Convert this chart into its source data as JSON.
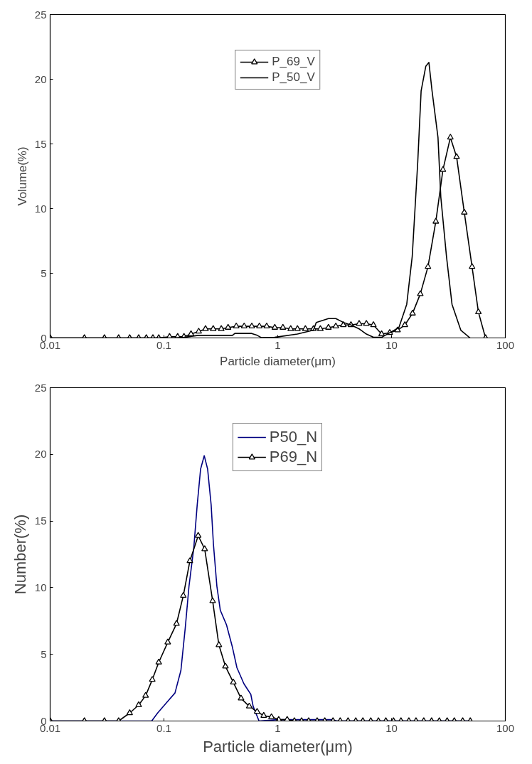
{
  "chart_data": [
    {
      "type": "line",
      "xlabel": "Particle diameter(μm)",
      "ylabel": "Volume(%)",
      "log": "x",
      "xlim": [
        0.01,
        100
      ],
      "ylim": [
        0,
        25
      ],
      "xticks": [
        0.01,
        0.1,
        1,
        10,
        100
      ],
      "yticks": [
        0,
        5,
        10,
        15,
        20,
        25
      ],
      "grid": false,
      "legend": "top",
      "series": [
        {
          "name": "P_69_V",
          "color": "#000000",
          "marker": "triangle",
          "x": [
            0.01,
            0.02,
            0.03,
            0.04,
            0.05,
            0.06,
            0.07,
            0.08,
            0.09,
            0.112,
            0.132,
            0.15,
            0.173,
            0.202,
            0.232,
            0.271,
            0.319,
            0.366,
            0.432,
            0.507,
            0.592,
            0.69,
            0.8,
            0.942,
            1.11,
            1.3,
            1.49,
            1.75,
            2.06,
            2.37,
            2.79,
            3.24,
            3.77,
            4.4,
            5.19,
            6.01,
            6.93,
            8.18,
            9.64,
            11.3,
            13.1,
            15.3,
            17.9,
            20.9,
            24.5,
            28.3,
            32.9,
            37.3,
            43.6,
            51,
            58,
            67
          ],
          "values": [
            0,
            0,
            0,
            0,
            0,
            0,
            0,
            0,
            0,
            0.1,
            0.1,
            0.1,
            0.3,
            0.5,
            0.7,
            0.7,
            0.7,
            0.8,
            0.9,
            0.9,
            0.9,
            0.9,
            0.9,
            0.8,
            0.8,
            0.7,
            0.7,
            0.7,
            0.7,
            0.7,
            0.8,
            0.9,
            1.0,
            1.0,
            1.1,
            1.1,
            1.0,
            0.3,
            0.4,
            0.6,
            1.0,
            1.9,
            3.4,
            5.5,
            9.0,
            13.0,
            15.5,
            14.0,
            9.7,
            5.5,
            2.0,
            0
          ]
        },
        {
          "name": "P_50_V",
          "color": "#000000",
          "marker": "none",
          "x": [
            0.01,
            0.12,
            0.15,
            0.2,
            0.27,
            0.4,
            0.42,
            0.59,
            0.66,
            0.72,
            0.94,
            1.49,
            2.06,
            2.18,
            2.79,
            3.24,
            3.77,
            4.4,
            5.19,
            6.01,
            6.93,
            8.18,
            9.64,
            11.6,
            13.6,
            15.2,
            17,
            18.2,
            20,
            21.3,
            22.7,
            25.6,
            27.1,
            30.4,
            34,
            40.6,
            49
          ],
          "values": [
            0,
            0,
            0.05,
            0.2,
            0.2,
            0.2,
            0.35,
            0.35,
            0.2,
            0.02,
            0.05,
            0.3,
            0.6,
            1.2,
            1.5,
            1.5,
            1.2,
            1.0,
            0.7,
            0.3,
            0.05,
            0.05,
            0.4,
            0.8,
            2.6,
            6.3,
            13.6,
            19.1,
            21.0,
            21.3,
            19.1,
            15.5,
            10.9,
            6.3,
            2.6,
            0.6,
            0
          ]
        }
      ]
    },
    {
      "type": "line",
      "xlabel": "Particle diameter(μm)",
      "ylabel": "Number(%)",
      "log": "x",
      "xlim": [
        0.01,
        100
      ],
      "ylim": [
        0,
        25
      ],
      "xticks": [
        0.01,
        0.1,
        1,
        10,
        100
      ],
      "yticks": [
        0,
        5,
        10,
        15,
        20,
        25
      ],
      "grid": false,
      "legend": "top",
      "series": [
        {
          "name": "P50_N",
          "color": "#000080",
          "marker": "none",
          "x": [
            0.01,
            0.078,
            0.088,
            0.106,
            0.125,
            0.141,
            0.154,
            0.166,
            0.183,
            0.196,
            0.21,
            0.226,
            0.242,
            0.26,
            0.272,
            0.292,
            0.313,
            0.355,
            0.398,
            0.438,
            0.504,
            0.58,
            0.608,
            0.685,
            1.0,
            3.0,
            3.3,
            50
          ],
          "values": [
            0,
            0,
            0.6,
            1.4,
            2.1,
            3.8,
            7.0,
            10.1,
            13.0,
            16.2,
            18.9,
            19.9,
            18.9,
            16.2,
            13.3,
            10.1,
            8.3,
            7.2,
            5.6,
            4.0,
            2.8,
            2.0,
            1.1,
            0,
            0.1,
            0.1,
            0,
            0
          ]
        },
        {
          "name": "P69_N",
          "color": "#000000",
          "marker": "triangle",
          "x": [
            0.01,
            0.02,
            0.03,
            0.04,
            0.05,
            0.06,
            0.069,
            0.079,
            0.09,
            0.108,
            0.129,
            0.148,
            0.169,
            0.2,
            0.228,
            0.268,
            0.304,
            0.347,
            0.407,
            0.476,
            0.562,
            0.659,
            0.753,
            0.881,
            1.02,
            1.21,
            1.4,
            1.62,
            1.87,
            2.22,
            2.59,
            3.06,
            3.54,
            4.15,
            4.85,
            5.6,
            6.57,
            7.67,
            8.91,
            10.4,
            12.1,
            14.2,
            16.4,
            19.2,
            22.5,
            26.3,
            30.8,
            35.6,
            42.2,
            49.2
          ],
          "values": [
            0,
            0,
            0,
            0,
            0.6,
            1.2,
            1.9,
            3.1,
            4.4,
            5.9,
            7.3,
            9.4,
            12.0,
            13.9,
            12.9,
            9.0,
            5.7,
            4.1,
            2.9,
            1.7,
            1.1,
            0.7,
            0.4,
            0.3,
            0.1,
            0.1,
            0,
            0,
            0,
            0,
            0,
            0,
            0,
            0,
            0,
            0,
            0,
            0,
            0,
            0,
            0,
            0,
            0,
            0,
            0,
            0,
            0,
            0,
            0,
            0
          ]
        }
      ]
    }
  ]
}
